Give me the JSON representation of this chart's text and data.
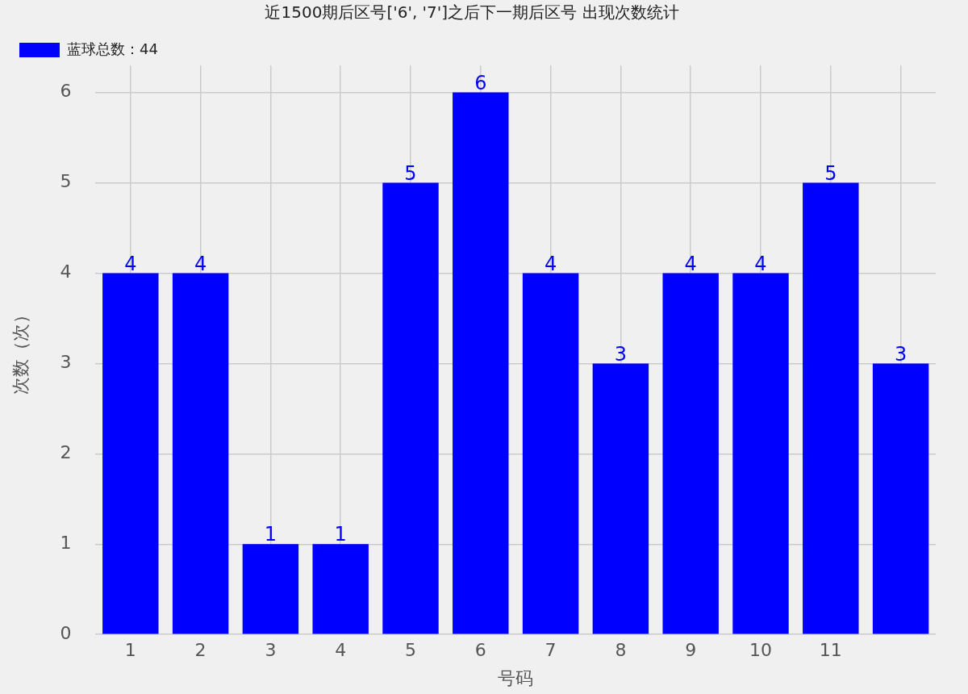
{
  "chart_data": {
    "type": "bar",
    "title": "近1500期后区号['6', '7']之后下一期后区号 出现次数统计",
    "xlabel": "号码",
    "ylabel": "次数（次）",
    "categories": [
      "1",
      "2",
      "3",
      "4",
      "5",
      "6",
      "7",
      "8",
      "9",
      "10",
      "11",
      null
    ],
    "series": [
      {
        "name": "蓝球总数：44",
        "color": "#0000ff",
        "values": [
          4,
          4,
          1,
          1,
          5,
          6,
          4,
          3,
          4,
          4,
          5,
          3
        ]
      }
    ],
    "ylim": [
      0,
      6.3
    ],
    "yticks": [
      0,
      1,
      2,
      3,
      4,
      5,
      6
    ],
    "grid": true,
    "legend": "top left",
    "data_labels": true
  }
}
